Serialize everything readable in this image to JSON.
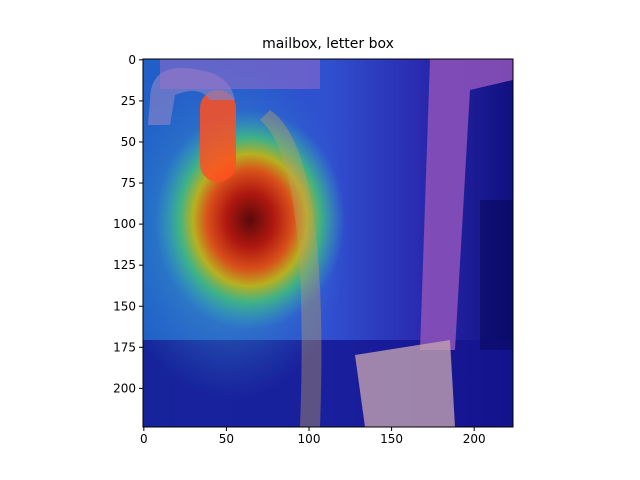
{
  "chart_data": {
    "type": "image",
    "title": "mailbox, letter box",
    "xlim": [
      -0.5,
      223.5
    ],
    "ylim": [
      223.5,
      -0.5
    ],
    "xticks": [
      0,
      50,
      100,
      150,
      200
    ],
    "yticks": [
      0,
      25,
      50,
      75,
      100,
      125,
      150,
      175,
      200
    ]
  }
}
